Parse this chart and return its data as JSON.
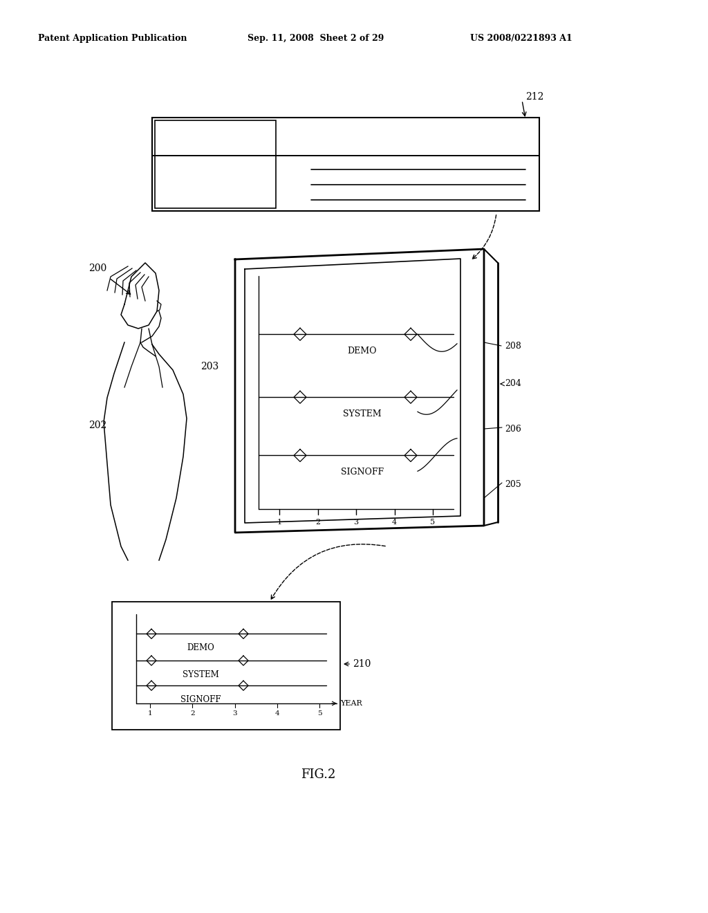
{
  "background_color": "#ffffff",
  "header_text_left": "Patent Application Publication",
  "header_text_mid": "Sep. 11, 2008  Sheet 2 of 29",
  "header_text_right": "US 2008/0221893 A1",
  "figure_label": "FIG.2",
  "label_212": "212",
  "label_210": "210",
  "label_208": "208",
  "label_206": "206",
  "label_205": "205",
  "label_204": "204",
  "label_203": "203",
  "label_202": "202",
  "label_200": "200",
  "chart_rows": [
    "DEMO",
    "SYSTEM",
    "SIGNOFF"
  ],
  "chart_x_label": "YEAR",
  "chart_x_ticks": [
    "1",
    "2",
    "3",
    "4",
    "5"
  ]
}
